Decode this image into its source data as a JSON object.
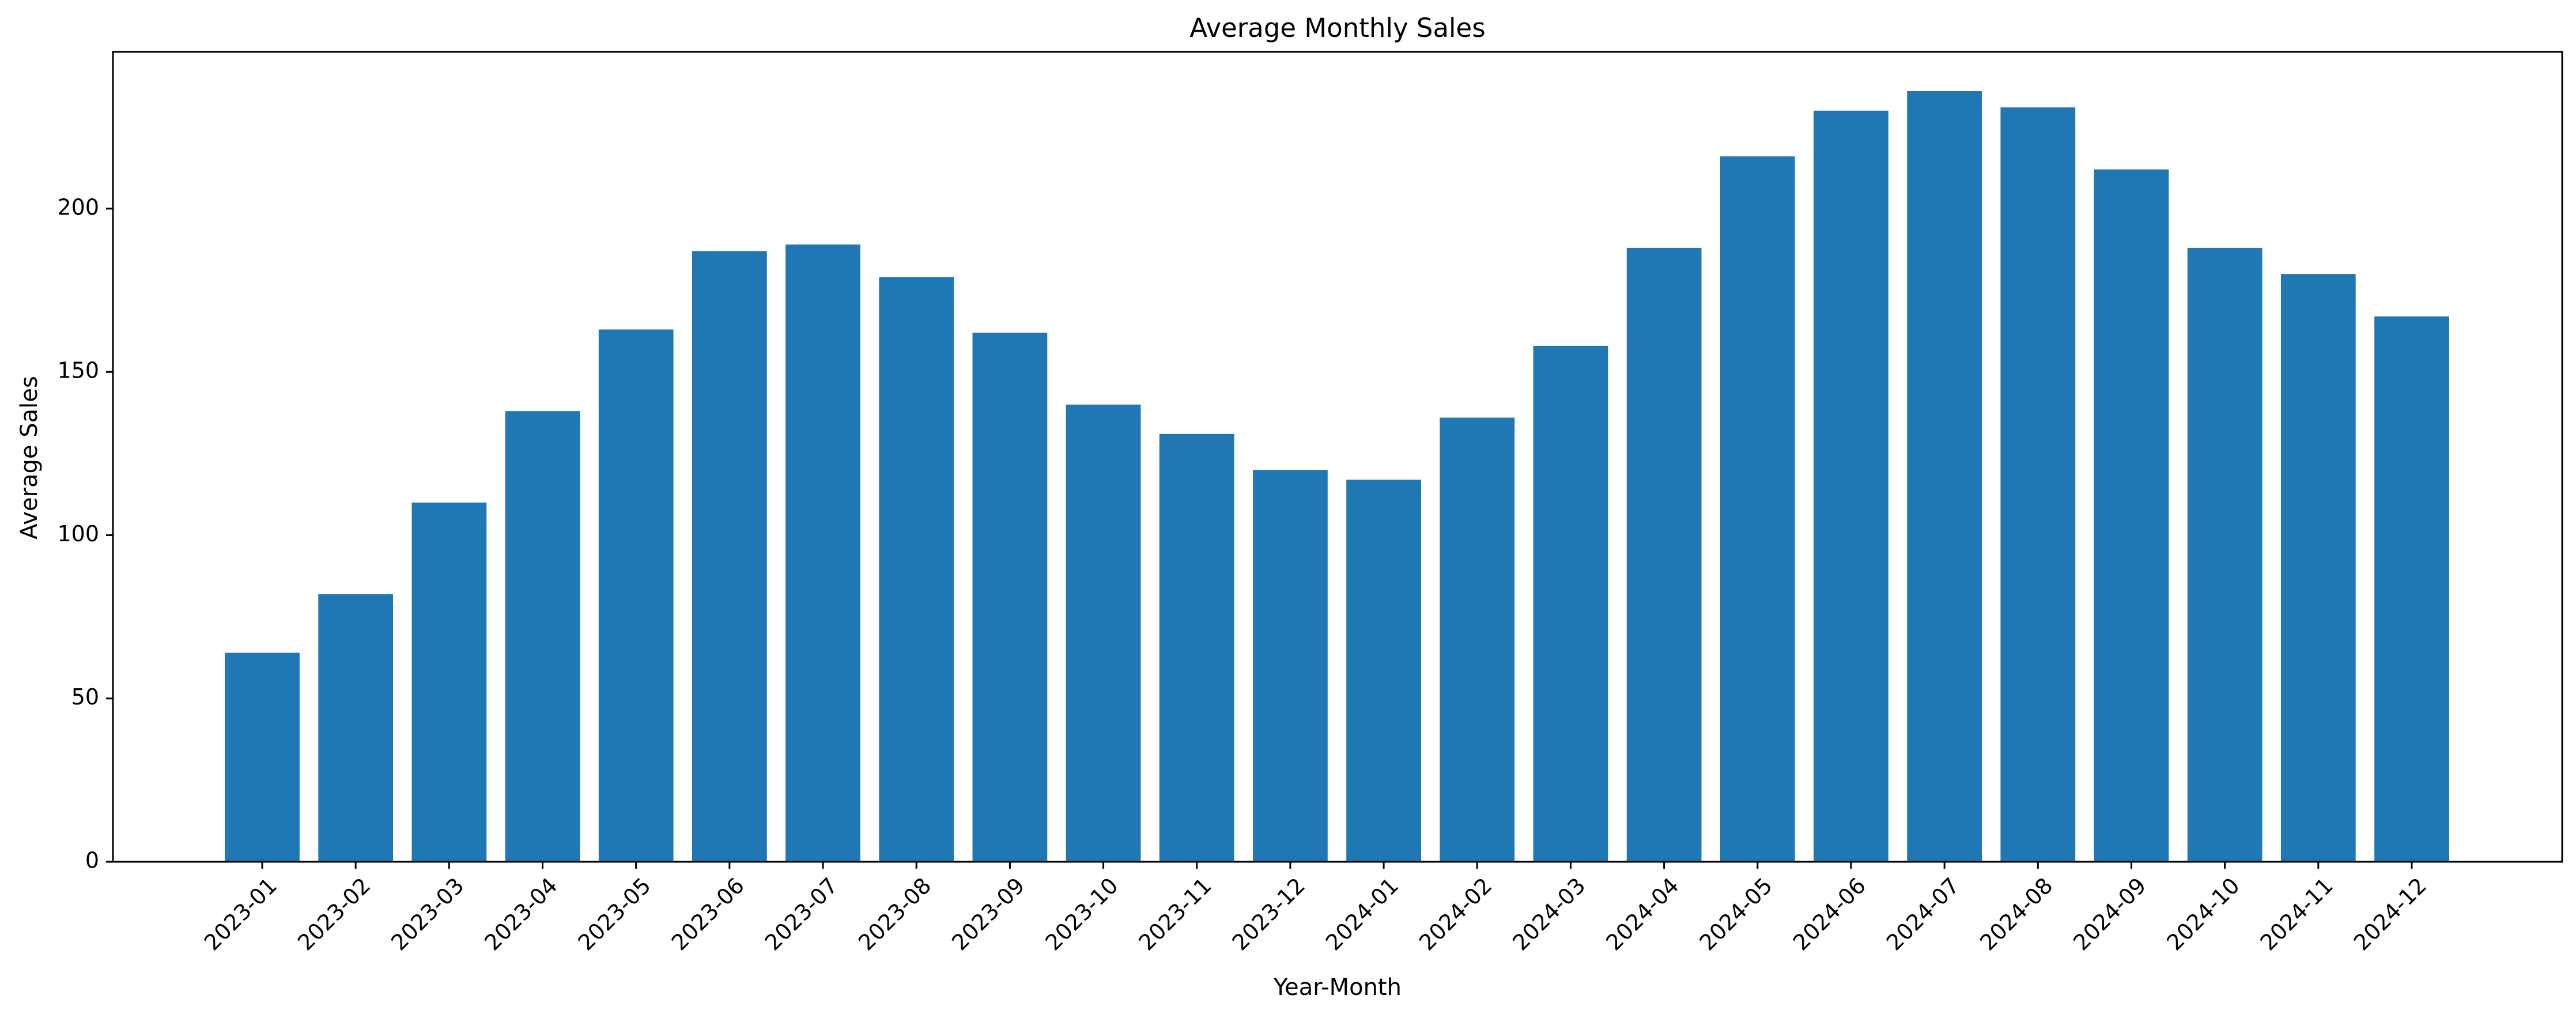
{
  "chart_data": {
    "type": "bar",
    "title": "Average Monthly Sales",
    "xlabel": "Year-Month",
    "ylabel": "Average Sales",
    "categories": [
      "2023-01",
      "2023-02",
      "2023-03",
      "2023-04",
      "2023-05",
      "2023-06",
      "2023-07",
      "2023-08",
      "2023-09",
      "2023-10",
      "2023-11",
      "2023-12",
      "2024-01",
      "2024-02",
      "2024-03",
      "2024-04",
      "2024-05",
      "2024-06",
      "2024-07",
      "2024-08",
      "2024-09",
      "2024-10",
      "2024-11",
      "2024-12"
    ],
    "values": [
      64,
      82,
      110,
      138,
      163,
      187,
      189,
      179,
      162,
      140,
      131,
      120,
      117,
      136,
      158,
      188,
      216,
      230,
      236,
      231,
      212,
      188,
      180,
      167
    ],
    "ylim": [
      0,
      248
    ],
    "yticks": [
      0,
      50,
      100,
      150,
      200
    ],
    "grid": false,
    "bar_color": "#1f77b4"
  }
}
